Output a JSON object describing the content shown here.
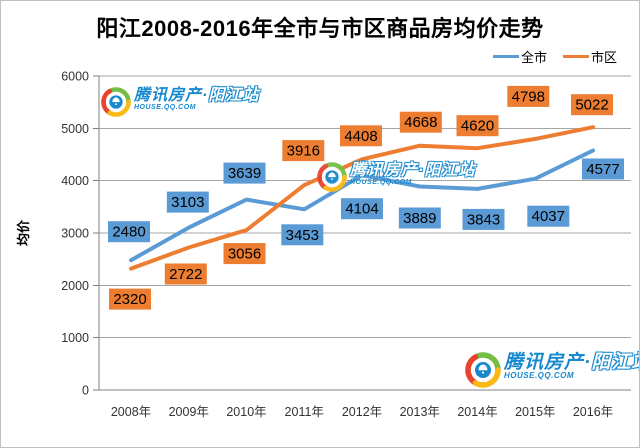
{
  "title": "阳江2008-2016年全市与市区商品房均价走势",
  "watermark": {
    "brand_main": "腾讯房产·",
    "brand_site": "阳江站",
    "url": "HOUSE.QQ.COM"
  },
  "chart_data": {
    "type": "line",
    "title": "阳江2008-2016年全市与市区商品房均价走势",
    "categories": [
      "2008年",
      "2009年",
      "2010年",
      "2011年",
      "2012年",
      "2013年",
      "2014年",
      "2015年",
      "2016年"
    ],
    "series": [
      {
        "name": "全市",
        "color": "#5B9BD5",
        "values": [
          2480,
          3103,
          3639,
          3453,
          4104,
          3889,
          3843,
          4037,
          4577
        ],
        "label_dx": [
          -2,
          -1,
          -2,
          -2,
          0,
          0,
          6,
          13,
          10
        ],
        "label_dy": [
          -39,
          -36,
          -37,
          15,
          23,
          21,
          20,
          27,
          8
        ]
      },
      {
        "name": "市区",
        "color": "#ED7D31",
        "values": [
          2320,
          2722,
          3056,
          3916,
          4408,
          4668,
          4620,
          4798,
          5022
        ],
        "label_dx": [
          -1,
          -3,
          -2,
          -1,
          -1,
          1,
          0,
          -7,
          -1
        ],
        "label_dy": [
          20,
          16,
          13,
          -45,
          -34,
          -34,
          -33,
          -53,
          -33
        ]
      }
    ],
    "xlabel": "",
    "ylabel": "均价",
    "ylim": [
      0,
      6000
    ],
    "ytick_step": 1000,
    "grid": true,
    "legend_position": "top-right",
    "data_labels": "boxed, fill = series color, black text"
  }
}
